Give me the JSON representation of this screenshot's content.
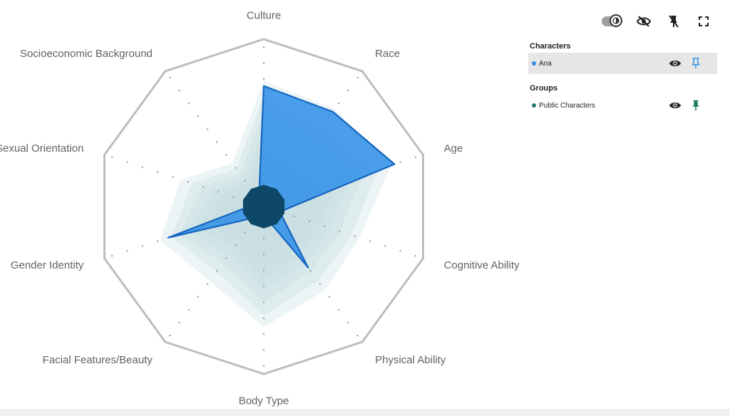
{
  "chart_data": {
    "type": "radar",
    "axes": [
      "Culture",
      "Race",
      "Age",
      "Cognitive Ability",
      "Physical Ability",
      "Body Type",
      "Facial Features/Beauty",
      "Gender Identity",
      "Sexual Orientation",
      "Socioeconomic Background"
    ],
    "rmax": 1,
    "background_layers": [
      [
        0.75,
        0.72,
        0.8,
        0.6,
        0.62,
        0.72,
        0.55,
        0.65,
        0.52,
        0.32
      ],
      [
        0.66,
        0.6,
        0.72,
        0.55,
        0.55,
        0.65,
        0.48,
        0.58,
        0.45,
        0.28
      ],
      [
        0.57,
        0.5,
        0.62,
        0.48,
        0.48,
        0.57,
        0.42,
        0.53,
        0.38,
        0.24
      ],
      [
        0.48,
        0.42,
        0.54,
        0.42,
        0.42,
        0.5,
        0.36,
        0.47,
        0.32,
        0.2
      ],
      [
        0.4,
        0.35,
        0.46,
        0.36,
        0.36,
        0.44,
        0.3,
        0.41,
        0.26,
        0.17
      ],
      [
        0.32,
        0.28,
        0.38,
        0.3,
        0.3,
        0.37,
        0.25,
        0.35,
        0.2,
        0.14
      ]
    ],
    "series": [
      {
        "name": "Ana",
        "color": "#2f8fe8",
        "values": [
          0.72,
          0.7,
          0.82,
          0.1,
          0.45,
          0.05,
          0.08,
          0.6,
          0.05,
          0.05
        ]
      },
      {
        "name": "Public Characters",
        "color": "#0d4868",
        "values": [
          0.13,
          0.13,
          0.13,
          0.13,
          0.13,
          0.13,
          0.13,
          0.13,
          0.13,
          0.13
        ]
      }
    ]
  },
  "panel": {
    "characters_title": "Characters",
    "characters": [
      {
        "name": "Ana",
        "color": "#2f8fe8",
        "pin_color": "#2f8fe8"
      }
    ],
    "groups_title": "Groups",
    "groups": [
      {
        "name": "Public Characters",
        "color": "#1e7a6a",
        "pin_color": "#1e7a6a"
      }
    ]
  },
  "toolbar": {
    "icons": [
      "contrast-toggle-icon",
      "eye-off-icon",
      "pin-off-icon",
      "fullscreen-icon"
    ]
  }
}
